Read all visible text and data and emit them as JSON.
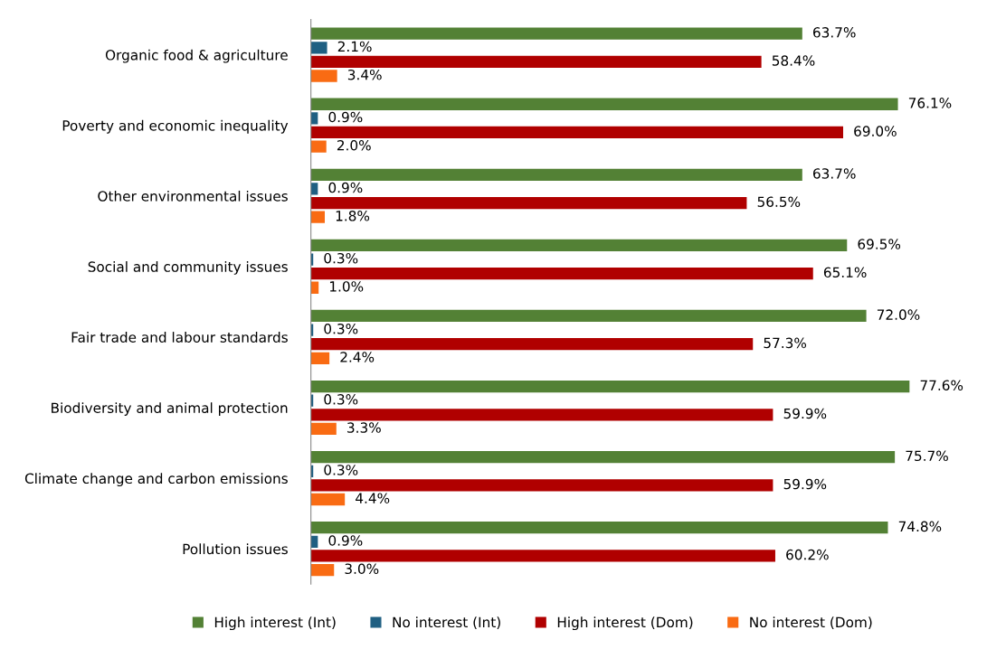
{
  "chart_data": {
    "type": "bar",
    "orientation": "horizontal",
    "legend": "bottom",
    "grid": false,
    "categories": [
      "Organic food & agriculture",
      "Poverty and economic inequality",
      "Other environmental issues",
      "Social and community issues",
      "Fair trade and labour standards",
      "Biodiversity and animal protection",
      "Climate change and carbon emissions",
      "Pollution issues"
    ],
    "series": [
      {
        "name": "High interest (Int)",
        "color": "#538135",
        "values": [
          63.7,
          76.1,
          63.7,
          69.5,
          72.0,
          77.6,
          75.7,
          74.8
        ],
        "value_labels": [
          "63.7%",
          "76.1%",
          "63.7%",
          "69.5%",
          "72.0%",
          "77.6%",
          "75.7%",
          "74.8%"
        ]
      },
      {
        "name": "No interest (Int)",
        "color": "#1f5f82",
        "values": [
          2.1,
          0.9,
          0.9,
          0.3,
          0.3,
          0.3,
          0.3,
          0.9
        ],
        "value_labels": [
          "2.1%",
          "0.9%",
          "0.9%",
          "0.3%",
          "0.3%",
          "0.3%",
          "0.3%",
          "0.9%"
        ]
      },
      {
        "name": "High interest (Dom)",
        "color": "#b00000",
        "values": [
          58.4,
          69.0,
          56.5,
          65.1,
          57.3,
          59.9,
          59.9,
          60.2
        ],
        "value_labels": [
          "58.4%",
          "69.0%",
          "56.5%",
          "65.1%",
          "57.3%",
          "59.9%",
          "59.9%",
          "60.2%"
        ]
      },
      {
        "name": "No interest (Dom)",
        "color": "#f96b13",
        "values": [
          3.4,
          2.0,
          1.8,
          1.0,
          2.4,
          3.3,
          4.4,
          3.0
        ],
        "value_labels": [
          "3.4%",
          "2.0%",
          "1.8%",
          "1.0%",
          "2.4%",
          "3.3%",
          "4.4%",
          "3.0%"
        ]
      }
    ]
  }
}
